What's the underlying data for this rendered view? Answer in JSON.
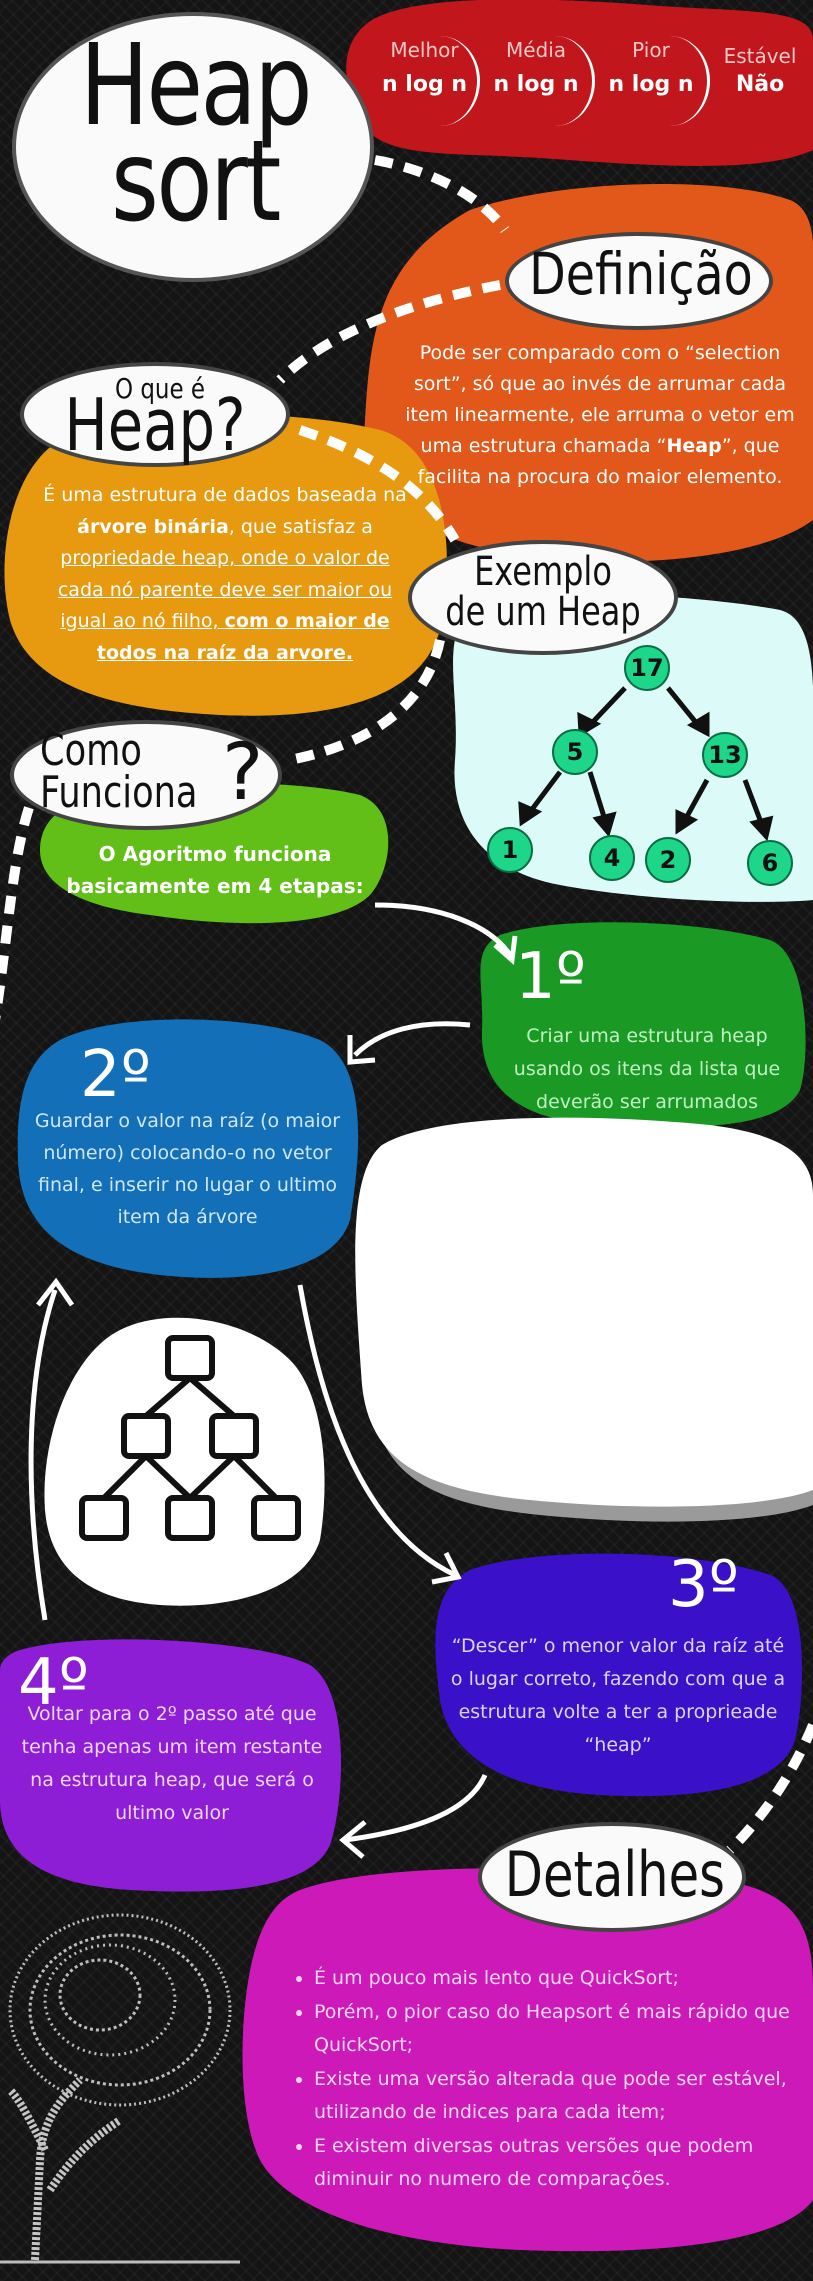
{
  "title": {
    "line1": "Heap",
    "line2": "sort"
  },
  "complexity": [
    {
      "label": "Melhor",
      "value": "n log n"
    },
    {
      "label": "Média",
      "value": "n log n"
    },
    {
      "label": "Pior",
      "value": "n log n"
    },
    {
      "label": "Estável",
      "value": "Não"
    }
  ],
  "definicao": {
    "heading": "Definição",
    "text_a": "Pode ser comparado com o “selection sort”, só que ao invés de arrumar cada item linearmente, ele arruma o vetor em uma estrutura chamada “",
    "text_bold": "Heap",
    "text_b": "”, que facilita na procura do maior elemento."
  },
  "oque": {
    "heading_small": "O que é",
    "heading_big": "Heap?",
    "p1": "É uma estrutura de dados baseada na ",
    "p1_bold": "árvore binária",
    "p1_b": ", que satisfaz a ",
    "p1_u": "propriedade heap, onde o valor de cada nó parente deve ser maior ou igual ao nó filho, ",
    "p1_ub": "com o maior de todos na raíz da arvore."
  },
  "exemplo": {
    "heading_l1": "Exemplo",
    "heading_l2": "de um Heap",
    "nodes": [
      "17",
      "5",
      "13",
      "1",
      "4",
      "2",
      "6"
    ]
  },
  "como": {
    "heading_l1": "Como",
    "heading_l2": "Funciona",
    "q": "?",
    "text": "O Agoritmo funciona basicamente em 4 etapas:"
  },
  "steps": [
    {
      "num": "1º",
      "text": "Criar uma estrutura heap usando os itens da lista que deverão ser arrumados"
    },
    {
      "num": "2º",
      "text": "Guardar o valor na raíz (o maior número)  colocando-o no vetor final, e inserir no lugar o ultimo item da árvore"
    },
    {
      "num": "3º",
      "text": "“Descer” o menor valor da raíz até o lugar correto, fazendo com que a estrutura volte a ter a proprieade “heap”"
    },
    {
      "num": "4º",
      "text": "Voltar para o 2º passo até que tenha apenas um item restante na estrutura heap, que será o ultimo valor"
    }
  ],
  "detalhes": {
    "heading": "Detalhes",
    "items": [
      "É um pouco mais lento que QuickSort;",
      "Porém, o pior caso do Heapsort é mais rápido que QuickSort;",
      "Existe uma versão alterada que pode ser estável, utilizando de indices para cada item;",
      "E existem diversas outras versões que podem diminuir no numero de comparações."
    ]
  },
  "colors": {
    "red": "#c0161c",
    "orange": "#e2581a",
    "amber": "#e79a10",
    "mint": "#dcfbf8",
    "green_light": "#62bf18",
    "green": "#1a9a24",
    "blue": "#1370b8",
    "indigo": "#3a10c8",
    "purple": "#8d1ed6",
    "magenta": "#cc19b8",
    "node": "#1ed68a"
  },
  "icons": [
    "tree-structure-icon",
    "tree-of-words-illustration"
  ]
}
